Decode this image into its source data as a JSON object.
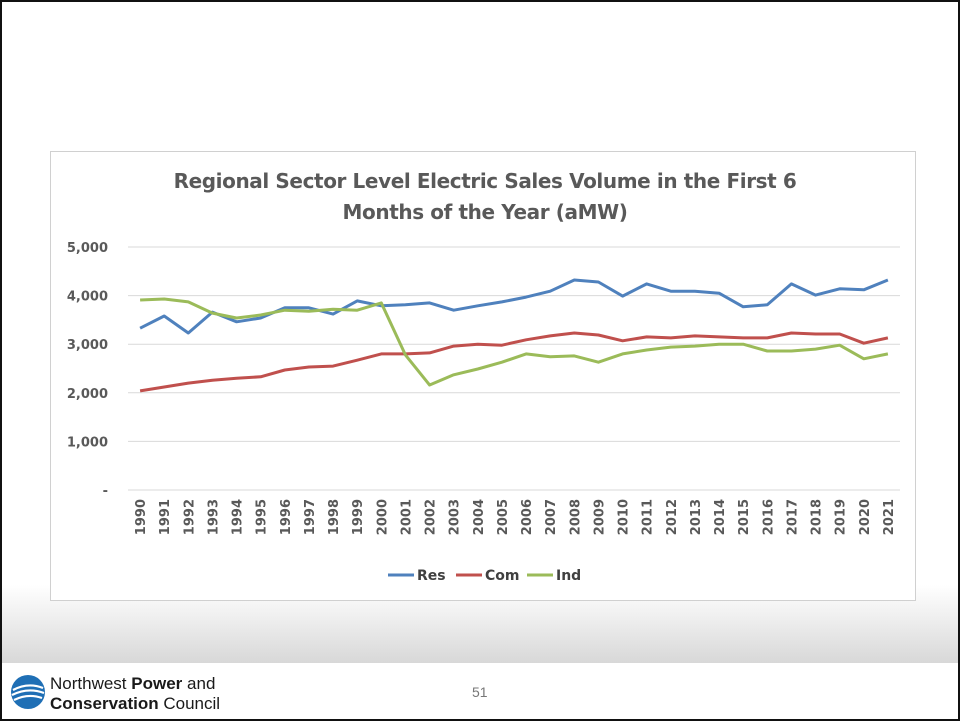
{
  "chart_data": {
    "type": "line",
    "title": "Regional Sector Level Electric Sales Volume in the First 6 Months of the Year (aMW)",
    "categories": [
      "1990",
      "1991",
      "1992",
      "1993",
      "1994",
      "1995",
      "1996",
      "1997",
      "1998",
      "1999",
      "2000",
      "2001",
      "2002",
      "2003",
      "2004",
      "2005",
      "2006",
      "2007",
      "2008",
      "2009",
      "2010",
      "2011",
      "2012",
      "2013",
      "2014",
      "2015",
      "2016",
      "2017",
      "2018",
      "2019",
      "2020",
      "2021"
    ],
    "series": [
      {
        "name": "Res",
        "color": "#4f81bd",
        "values": [
          3330,
          3580,
          3230,
          3660,
          3460,
          3540,
          3750,
          3750,
          3620,
          3890,
          3790,
          3810,
          3850,
          3700,
          3790,
          3870,
          3970,
          4090,
          4320,
          4280,
          3990,
          4240,
          4090,
          4090,
          4050,
          3770,
          3810,
          4240,
          4010,
          4140,
          4120,
          4320
        ]
      },
      {
        "name": "Com",
        "color": "#c0504d",
        "values": [
          2040,
          2120,
          2200,
          2260,
          2300,
          2330,
          2470,
          2530,
          2550,
          2670,
          2800,
          2800,
          2820,
          2960,
          3000,
          2980,
          3090,
          3170,
          3230,
          3190,
          3070,
          3150,
          3130,
          3170,
          3150,
          3130,
          3130,
          3230,
          3210,
          3210,
          3020,
          3130
        ]
      },
      {
        "name": "Ind",
        "color": "#9bbb59",
        "values": [
          3910,
          3930,
          3870,
          3640,
          3540,
          3600,
          3700,
          3680,
          3720,
          3700,
          3850,
          2780,
          2160,
          2370,
          2490,
          2630,
          2800,
          2740,
          2760,
          2630,
          2800,
          2880,
          2940,
          2960,
          3000,
          3000,
          2860,
          2860,
          2900,
          2980,
          2700,
          2800
        ]
      }
    ],
    "ylim": [
      0,
      5000
    ],
    "yticks": [
      {
        "value": 0,
        "label": "-"
      },
      {
        "value": 1000,
        "label": "1,000"
      },
      {
        "value": 2000,
        "label": "2,000"
      },
      {
        "value": 3000,
        "label": "3,000"
      },
      {
        "value": 4000,
        "label": "4,000"
      },
      {
        "value": 5000,
        "label": "5,000"
      }
    ],
    "grid": true,
    "legend": "bottom"
  },
  "footer": {
    "org_line1": [
      "Northwest",
      "Power",
      "and"
    ],
    "org_line2": [
      "Conservation",
      "Council"
    ],
    "page_number": "51"
  }
}
